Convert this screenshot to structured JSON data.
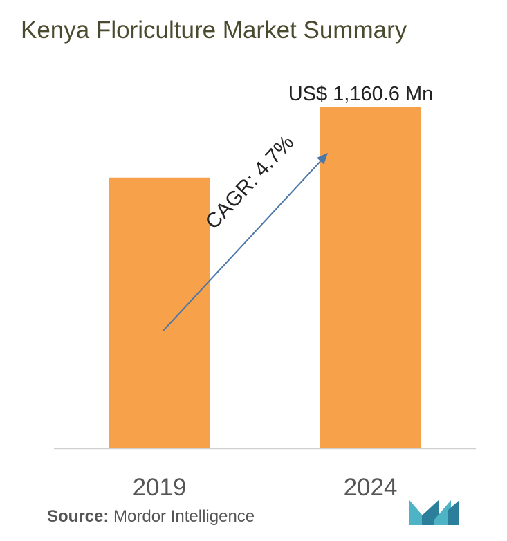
{
  "title": "Kenya Floriculture Market Summary",
  "source": {
    "label": "Source:",
    "text": "Mordor Intelligence"
  },
  "colors": {
    "bar": "#f7a14a",
    "arrow": "#4a76a8",
    "axis": "#d0d0d0",
    "logo": "#4fb3c6"
  },
  "chart_data": {
    "type": "bar",
    "categories": [
      "2019",
      "2024"
    ],
    "values": [
      921,
      1160.6
    ],
    "value_labels": [
      "",
      "US$ 1,160.6 Mn"
    ],
    "annotation": "CAGR: 4.7%",
    "ylim": [
      0,
      1160.6
    ],
    "grid": false,
    "xlabel": "",
    "ylabel": ""
  }
}
